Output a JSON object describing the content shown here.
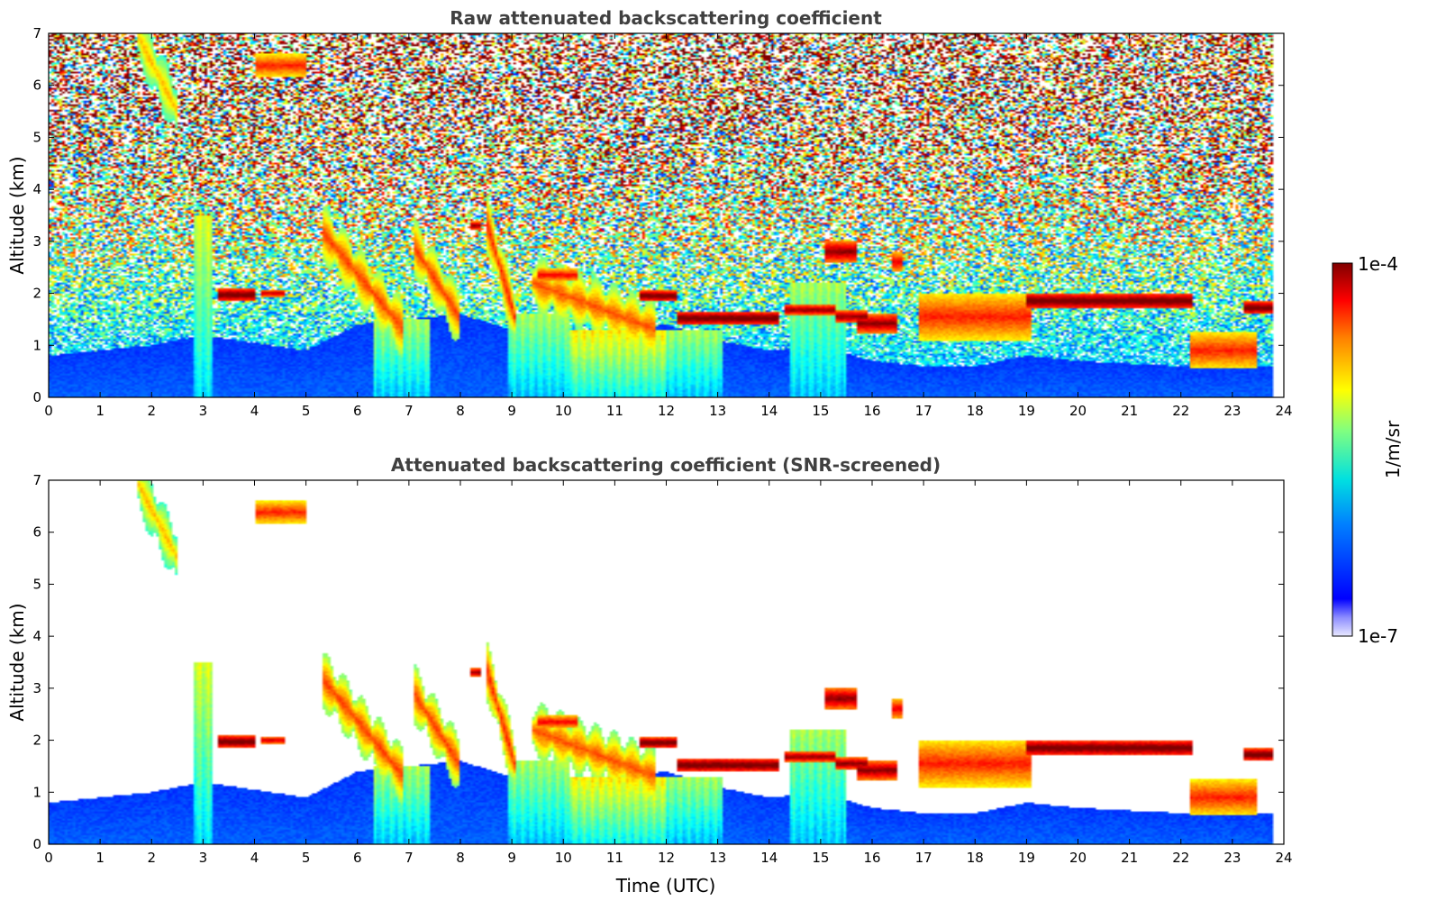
{
  "chart_data": [
    {
      "type": "heatmap",
      "title": "Raw attenuated backscattering coefficient",
      "xlabel": "",
      "ylabel": "Altitude (km)",
      "xlim": [
        0,
        24
      ],
      "ylim": [
        0,
        7
      ],
      "xticks": [
        "0",
        "1",
        "2",
        "3",
        "4",
        "5",
        "6",
        "7",
        "8",
        "9",
        "10",
        "11",
        "12",
        "13",
        "14",
        "15",
        "16",
        "17",
        "18",
        "19",
        "20",
        "21",
        "22",
        "23",
        "24"
      ],
      "yticks": [
        "0",
        "1",
        "2",
        "3",
        "4",
        "5",
        "6",
        "7"
      ],
      "screened": false
    },
    {
      "type": "heatmap",
      "title": "Attenuated backscattering coefficient (SNR-screened)",
      "xlabel": "Time (UTC)",
      "ylabel": "Altitude (km)",
      "xlim": [
        0,
        24
      ],
      "ylim": [
        0,
        7
      ],
      "xticks": [
        "0",
        "1",
        "2",
        "3",
        "4",
        "5",
        "6",
        "7",
        "8",
        "9",
        "10",
        "11",
        "12",
        "13",
        "14",
        "15",
        "16",
        "17",
        "18",
        "19",
        "20",
        "21",
        "22",
        "23",
        "24"
      ],
      "yticks": [
        "0",
        "1",
        "2",
        "3",
        "4",
        "5",
        "6",
        "7"
      ],
      "screened": true
    }
  ],
  "colorbar": {
    "label": "1/m/sr",
    "max_label": "1e-4",
    "min_label": "1e-7",
    "scale": "log",
    "colormap": "jet"
  },
  "features": {
    "boundary_layer": [
      [
        0,
        0.8
      ],
      [
        2,
        1.0
      ],
      [
        3,
        1.2
      ],
      [
        5,
        0.9
      ],
      [
        6,
        1.4
      ],
      [
        8,
        1.6
      ],
      [
        9,
        1.3
      ],
      [
        11,
        1.3
      ],
      [
        12,
        1.4
      ],
      [
        13,
        1.1
      ],
      [
        14,
        0.9
      ],
      [
        15,
        1.0
      ],
      [
        16,
        0.7
      ],
      [
        17,
        0.6
      ],
      [
        18,
        0.6
      ],
      [
        19,
        0.8
      ],
      [
        20,
        0.7
      ],
      [
        22,
        0.6
      ],
      [
        24,
        0.6
      ]
    ],
    "clouds": [
      {
        "t0": 3.3,
        "t1": 4.0,
        "z": 1.97,
        "dz": 0.12,
        "v": 1.05
      },
      {
        "t0": 4.1,
        "t1": 4.6,
        "z": 2.0,
        "dz": 0.07,
        "v": 0.95
      },
      {
        "t0": 4.0,
        "t1": 5.0,
        "z": 6.38,
        "dz": 0.22,
        "v": 0.85
      },
      {
        "t0": 8.2,
        "t1": 8.4,
        "z": 3.3,
        "dz": 0.08,
        "v": 1.0
      },
      {
        "t0": 9.5,
        "t1": 10.3,
        "z": 2.35,
        "dz": 0.12,
        "v": 0.9
      },
      {
        "t0": 11.5,
        "t1": 12.2,
        "z": 1.95,
        "dz": 0.1,
        "v": 1.05
      },
      {
        "t0": 12.2,
        "t1": 14.2,
        "z": 1.52,
        "dz": 0.13,
        "v": 1.05
      },
      {
        "t0": 14.3,
        "t1": 15.3,
        "z": 1.68,
        "dz": 0.1,
        "v": 1.0
      },
      {
        "t0": 15.3,
        "t1": 15.9,
        "z": 1.55,
        "dz": 0.12,
        "v": 1.0
      },
      {
        "t0": 15.1,
        "t1": 15.7,
        "z": 2.8,
        "dz": 0.2,
        "v": 1.0
      },
      {
        "t0": 15.7,
        "t1": 16.5,
        "z": 1.42,
        "dz": 0.18,
        "v": 1.0
      },
      {
        "t0": 16.4,
        "t1": 16.6,
        "z": 2.6,
        "dz": 0.2,
        "v": 0.9
      },
      {
        "t0": 16.9,
        "t1": 19.1,
        "z": 1.55,
        "dz": 0.45,
        "v": 0.85
      },
      {
        "t0": 19.0,
        "t1": 22.2,
        "z": 1.85,
        "dz": 0.15,
        "v": 1.05
      },
      {
        "t0": 23.2,
        "t1": 23.8,
        "z": 1.72,
        "dz": 0.12,
        "v": 1.05
      },
      {
        "t0": 22.2,
        "t1": 23.5,
        "z": 0.9,
        "dz": 0.35,
        "v": 0.85
      }
    ],
    "precip_shafts": [
      {
        "t0": 2.8,
        "t1": 3.2,
        "top": 3.5,
        "v": 0.55
      },
      {
        "t0": 6.3,
        "t1": 7.4,
        "top": 1.5,
        "v": 0.5
      },
      {
        "t0": 8.9,
        "t1": 10.1,
        "top": 1.6,
        "v": 0.5
      },
      {
        "t0": 10.1,
        "t1": 12.0,
        "top": 1.3,
        "v": 0.6
      },
      {
        "t0": 12.0,
        "t1": 13.1,
        "top": 1.3,
        "v": 0.5
      },
      {
        "t0": 14.4,
        "t1": 15.5,
        "top": 2.2,
        "v": 0.5
      }
    ],
    "fall_streaks": [
      {
        "t0": 5.3,
        "t1": 6.9,
        "z0": 3.2,
        "z1": 1.3,
        "v": 0.82
      },
      {
        "t0": 7.1,
        "t1": 8.0,
        "z0": 2.9,
        "z1": 1.5,
        "v": 0.82
      },
      {
        "t0": 8.5,
        "t1": 9.1,
        "z0": 3.4,
        "z1": 1.4,
        "v": 0.85
      },
      {
        "t0": 1.7,
        "t1": 2.5,
        "z0": 7.0,
        "z1": 5.5,
        "v": 0.7
      },
      {
        "t0": 9.4,
        "t1": 11.8,
        "z0": 2.2,
        "z1": 1.3,
        "v": 0.8
      }
    ]
  }
}
